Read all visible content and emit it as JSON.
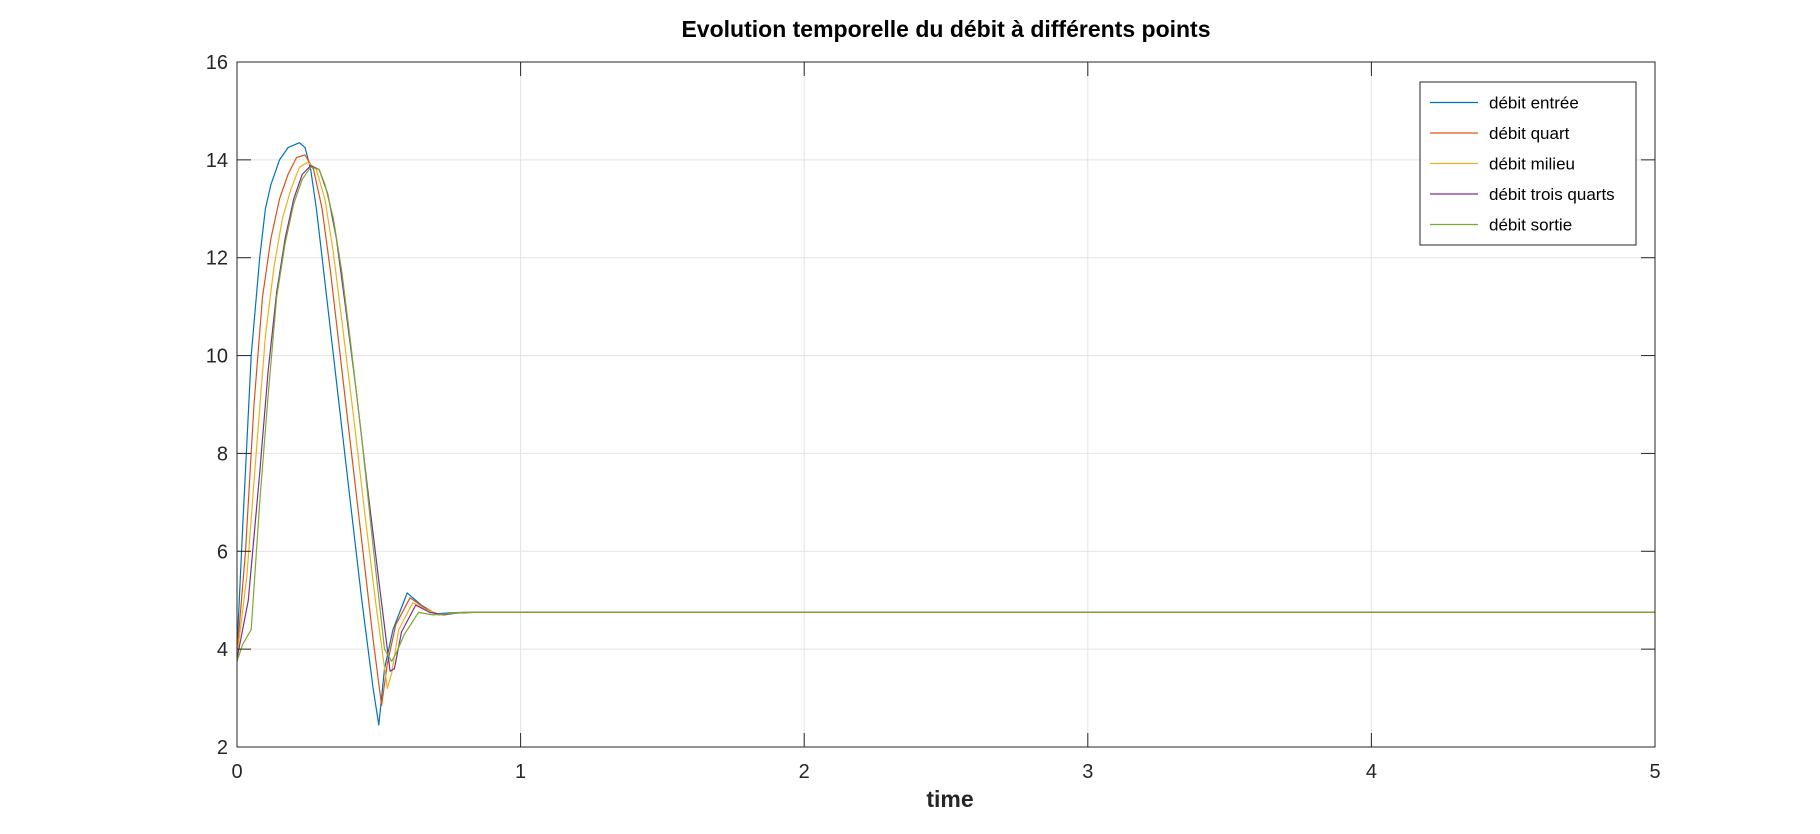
{
  "chart_data": {
    "type": "line",
    "title": "Evolution temporelle du débit à différents points",
    "xlabel": "time",
    "ylabel": "",
    "xlim": [
      0,
      5
    ],
    "ylim": [
      2,
      16
    ],
    "xticks": [
      "0",
      "1",
      "2",
      "3",
      "4",
      "5"
    ],
    "yticks": [
      "2",
      "4",
      "6",
      "8",
      "10",
      "12",
      "14",
      "16"
    ],
    "grid": true,
    "legend_position": "top-right",
    "series": [
      {
        "name": "débit entrée",
        "color": "#0072bd",
        "x": [
          0,
          0.02,
          0.05,
          0.08,
          0.1,
          0.12,
          0.15,
          0.18,
          0.2,
          0.22,
          0.24,
          0.26,
          0.28,
          0.3,
          0.33,
          0.36,
          0.4,
          0.44,
          0.48,
          0.5,
          0.52,
          0.55,
          0.6,
          0.65,
          0.7,
          0.75,
          0.8,
          0.9,
          5
        ],
        "y": [
          4.0,
          6.5,
          10.0,
          12.0,
          13.0,
          13.5,
          14.0,
          14.25,
          14.3,
          14.35,
          14.25,
          13.8,
          13.0,
          12.0,
          10.5,
          9.0,
          7.0,
          5.0,
          3.2,
          2.45,
          3.6,
          4.4,
          5.15,
          4.9,
          4.72,
          4.74,
          4.75,
          4.75,
          4.75
        ]
      },
      {
        "name": "débit quart",
        "color": "#d95319",
        "x": [
          0,
          0.03,
          0.06,
          0.09,
          0.12,
          0.15,
          0.18,
          0.21,
          0.24,
          0.27,
          0.3,
          0.33,
          0.36,
          0.4,
          0.44,
          0.48,
          0.51,
          0.53,
          0.56,
          0.61,
          0.66,
          0.71,
          0.76,
          0.82,
          0.9,
          5
        ],
        "y": [
          3.9,
          6.0,
          9.0,
          11.2,
          12.4,
          13.2,
          13.7,
          14.05,
          14.1,
          13.8,
          13.0,
          11.7,
          10.2,
          8.2,
          6.2,
          4.2,
          2.85,
          3.7,
          4.5,
          5.05,
          4.85,
          4.7,
          4.73,
          4.75,
          4.75,
          4.75
        ]
      },
      {
        "name": "débit milieu",
        "color": "#edb120",
        "x": [
          0,
          0.035,
          0.07,
          0.1,
          0.13,
          0.16,
          0.19,
          0.22,
          0.25,
          0.28,
          0.31,
          0.34,
          0.37,
          0.41,
          0.45,
          0.49,
          0.53,
          0.545,
          0.57,
          0.62,
          0.67,
          0.72,
          0.77,
          0.83,
          0.9,
          5
        ],
        "y": [
          3.85,
          5.5,
          8.2,
          10.4,
          11.8,
          12.8,
          13.4,
          13.85,
          13.95,
          13.8,
          13.2,
          12.1,
          10.7,
          8.8,
          6.8,
          4.9,
          3.2,
          3.5,
          4.4,
          4.95,
          4.8,
          4.7,
          4.74,
          4.75,
          4.75,
          4.75
        ]
      },
      {
        "name": "débit trois quarts",
        "color": "#7e2f8e",
        "x": [
          0,
          0.04,
          0.08,
          0.11,
          0.14,
          0.17,
          0.2,
          0.23,
          0.26,
          0.29,
          0.32,
          0.35,
          0.38,
          0.42,
          0.46,
          0.5,
          0.54,
          0.555,
          0.58,
          0.63,
          0.68,
          0.73,
          0.78,
          0.84,
          0.9,
          5
        ],
        "y": [
          3.8,
          5.0,
          7.6,
          9.7,
          11.3,
          12.4,
          13.2,
          13.7,
          13.88,
          13.8,
          13.3,
          12.4,
          11.1,
          9.3,
          7.3,
          5.4,
          3.55,
          3.6,
          4.35,
          4.9,
          4.75,
          4.7,
          4.74,
          4.75,
          4.75,
          4.75
        ]
      },
      {
        "name": "débit sortie",
        "color": "#77ac30",
        "x": [
          0,
          0.02,
          0.05,
          0.08,
          0.11,
          0.14,
          0.17,
          0.2,
          0.23,
          0.26,
          0.29,
          0.31,
          0.34,
          0.37,
          0.4,
          0.44,
          0.48,
          0.52,
          0.545,
          0.56,
          0.59,
          0.64,
          0.69,
          0.74,
          0.8,
          0.86,
          0.9,
          5
        ],
        "y": [
          3.75,
          4.1,
          4.4,
          7.0,
          9.2,
          11.2,
          12.3,
          13.1,
          13.6,
          13.85,
          13.8,
          13.5,
          12.8,
          11.7,
          10.3,
          8.3,
          6.1,
          4.0,
          3.75,
          3.9,
          4.3,
          4.75,
          4.7,
          4.72,
          4.75,
          4.75,
          4.75,
          4.75
        ]
      }
    ]
  }
}
